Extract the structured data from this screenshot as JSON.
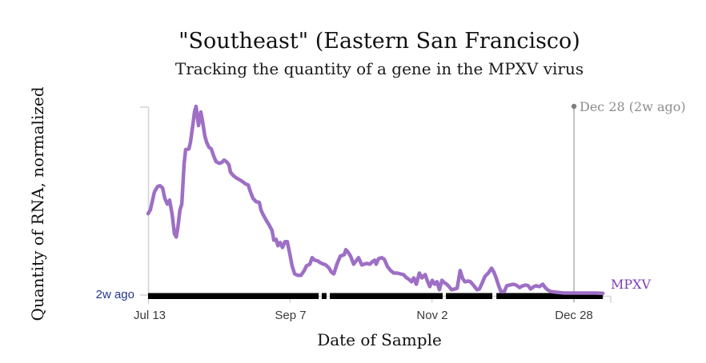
{
  "header": {
    "title": "\"Southeast\" (Eastern San Francisco)",
    "subtitle": "Tracking the quantity of a gene in the MPXV virus"
  },
  "colors": {
    "line": "#9e6fc5",
    "series_label": "#7e3db2",
    "latest_label": "#23378c",
    "annotation_text": "#8c8c8c",
    "annotation_line": "#b3b3b3",
    "annotation_dot": "#7f7f7f",
    "axis": "#d6d6d6",
    "tick_text": "#3a3a3a",
    "rug": "#000000"
  },
  "chart_data": {
    "type": "line",
    "title": "\"Southeast\" (Eastern San Francisco)",
    "subtitle": "Tracking the quantity of a gene in the MPXV virus",
    "xlabel": "Date of Sample",
    "ylabel": "Quantity of RNA, normalized",
    "x_unit": "days since Jul 13",
    "x_ticks": [
      {
        "day": 0,
        "label": "Jul 13"
      },
      {
        "day": 56,
        "label": "Sep 7"
      },
      {
        "day": 112,
        "label": "Nov 2"
      },
      {
        "day": 168,
        "label": "Dec 28"
      }
    ],
    "x_axis_end_day": 182.5,
    "ylim": [
      0,
      1.05
    ],
    "grid": false,
    "legend_position": "right-of-line-end",
    "latest_value_label": "2w ago",
    "annotation": {
      "label": "Dec 28 (2w ago)",
      "day": 168,
      "value_top": 1.0
    },
    "sample_rug_day_ranges": [
      [
        0,
        67.3
      ],
      [
        68.5,
        70.4
      ],
      [
        71.7,
        116.2
      ],
      [
        117.5,
        135.8
      ],
      [
        137.4,
        179.4
      ]
    ],
    "series": [
      {
        "name": "MPXV",
        "points": [
          [
            0.0,
            0.435
          ],
          [
            0.9,
            0.456
          ],
          [
            2.5,
            0.549
          ],
          [
            3.8,
            0.578
          ],
          [
            4.7,
            0.582
          ],
          [
            5.7,
            0.57
          ],
          [
            6.6,
            0.515
          ],
          [
            7.6,
            0.485
          ],
          [
            8.5,
            0.506
          ],
          [
            9.5,
            0.43
          ],
          [
            10.4,
            0.329
          ],
          [
            11.1,
            0.312
          ],
          [
            11.7,
            0.359
          ],
          [
            12.6,
            0.456
          ],
          [
            13.3,
            0.485
          ],
          [
            14.2,
            0.696
          ],
          [
            14.8,
            0.772
          ],
          [
            16.1,
            0.776
          ],
          [
            16.7,
            0.81
          ],
          [
            17.7,
            0.907
          ],
          [
            18.3,
            0.97
          ],
          [
            18.9,
            1.0
          ],
          [
            19.9,
            0.899
          ],
          [
            20.8,
            0.97
          ],
          [
            21.5,
            0.92
          ],
          [
            22.4,
            0.844
          ],
          [
            23.1,
            0.81
          ],
          [
            24.0,
            0.785
          ],
          [
            24.9,
            0.776
          ],
          [
            25.9,
            0.738
          ],
          [
            26.8,
            0.709
          ],
          [
            28.1,
            0.7
          ],
          [
            29.1,
            0.705
          ],
          [
            30.0,
            0.717
          ],
          [
            30.9,
            0.709
          ],
          [
            31.9,
            0.692
          ],
          [
            32.5,
            0.654
          ],
          [
            33.5,
            0.637
          ],
          [
            34.7,
            0.624
          ],
          [
            36.3,
            0.612
          ],
          [
            37.3,
            0.603
          ],
          [
            38.5,
            0.591
          ],
          [
            39.5,
            0.586
          ],
          [
            40.4,
            0.549
          ],
          [
            41.4,
            0.515
          ],
          [
            42.6,
            0.498
          ],
          [
            43.9,
            0.494
          ],
          [
            44.5,
            0.456
          ],
          [
            45.2,
            0.435
          ],
          [
            46.4,
            0.405
          ],
          [
            47.7,
            0.376
          ],
          [
            48.9,
            0.346
          ],
          [
            49.6,
            0.295
          ],
          [
            50.5,
            0.3
          ],
          [
            51.2,
            0.266
          ],
          [
            52.1,
            0.283
          ],
          [
            53.0,
            0.257
          ],
          [
            54.0,
            0.287
          ],
          [
            54.9,
            0.287
          ],
          [
            55.9,
            0.224
          ],
          [
            56.8,
            0.16
          ],
          [
            57.8,
            0.118
          ],
          [
            59.0,
            0.11
          ],
          [
            60.3,
            0.11
          ],
          [
            61.6,
            0.135
          ],
          [
            62.5,
            0.16
          ],
          [
            63.8,
            0.169
          ],
          [
            64.7,
            0.203
          ],
          [
            65.7,
            0.19
          ],
          [
            66.9,
            0.186
          ],
          [
            67.9,
            0.177
          ],
          [
            69.2,
            0.169
          ],
          [
            70.1,
            0.165
          ],
          [
            71.4,
            0.148
          ],
          [
            72.3,
            0.127
          ],
          [
            73.3,
            0.118
          ],
          [
            74.5,
            0.169
          ],
          [
            75.8,
            0.211
          ],
          [
            77.4,
            0.219
          ],
          [
            78.0,
            0.245
          ],
          [
            78.9,
            0.232
          ],
          [
            79.9,
            0.211
          ],
          [
            81.1,
            0.169
          ],
          [
            82.1,
            0.186
          ],
          [
            83.0,
            0.203
          ],
          [
            84.3,
            0.165
          ],
          [
            85.3,
            0.169
          ],
          [
            86.2,
            0.173
          ],
          [
            87.5,
            0.169
          ],
          [
            88.4,
            0.181
          ],
          [
            89.4,
            0.19
          ],
          [
            90.0,
            0.169
          ],
          [
            90.9,
            0.198
          ],
          [
            92.2,
            0.203
          ],
          [
            93.2,
            0.194
          ],
          [
            94.4,
            0.156
          ],
          [
            95.7,
            0.135
          ],
          [
            96.9,
            0.122
          ],
          [
            98.2,
            0.122
          ],
          [
            99.5,
            0.118
          ],
          [
            100.7,
            0.114
          ],
          [
            102.0,
            0.097
          ],
          [
            102.9,
            0.089
          ],
          [
            103.9,
            0.076
          ],
          [
            104.8,
            0.097
          ],
          [
            105.8,
            0.063
          ],
          [
            107.0,
            0.122
          ],
          [
            108.0,
            0.097
          ],
          [
            109.3,
            0.114
          ],
          [
            110.2,
            0.08
          ],
          [
            111.1,
            0.051
          ],
          [
            112.1,
            0.084
          ],
          [
            113.0,
            0.063
          ],
          [
            114.0,
            0.076
          ],
          [
            114.9,
            0.034
          ],
          [
            115.9,
            0.084
          ],
          [
            116.8,
            0.072
          ],
          [
            117.8,
            0.063
          ],
          [
            118.7,
            0.051
          ],
          [
            119.7,
            0.034
          ],
          [
            120.9,
            0.038
          ],
          [
            121.9,
            0.042
          ],
          [
            123.1,
            0.135
          ],
          [
            124.1,
            0.093
          ],
          [
            125.0,
            0.076
          ],
          [
            126.3,
            0.08
          ],
          [
            127.2,
            0.076
          ],
          [
            128.5,
            0.055
          ],
          [
            129.8,
            0.034
          ],
          [
            130.7,
            0.038
          ],
          [
            132.0,
            0.076
          ],
          [
            132.9,
            0.105
          ],
          [
            134.2,
            0.122
          ],
          [
            135.5,
            0.148
          ],
          [
            136.4,
            0.127
          ],
          [
            137.3,
            0.097
          ],
          [
            138.3,
            0.055
          ],
          [
            139.2,
            0.025
          ],
          [
            140.5,
            0.025
          ],
          [
            141.5,
            0.055
          ],
          [
            142.7,
            0.059
          ],
          [
            144.0,
            0.063
          ],
          [
            145.2,
            0.059
          ],
          [
            146.5,
            0.046
          ],
          [
            147.8,
            0.055
          ],
          [
            149.0,
            0.059
          ],
          [
            150.0,
            0.055
          ],
          [
            150.9,
            0.038
          ],
          [
            152.2,
            0.051
          ],
          [
            153.1,
            0.055
          ],
          [
            154.4,
            0.051
          ],
          [
            155.7,
            0.063
          ],
          [
            156.6,
            0.046
          ],
          [
            157.6,
            0.034
          ],
          [
            158.8,
            0.025
          ],
          [
            161.0,
            0.021
          ],
          [
            164.2,
            0.017
          ],
          [
            167.4,
            0.017
          ],
          [
            170.5,
            0.017
          ],
          [
            173.7,
            0.017
          ],
          [
            176.8,
            0.017
          ],
          [
            179.4,
            0.015
          ]
        ]
      }
    ]
  }
}
